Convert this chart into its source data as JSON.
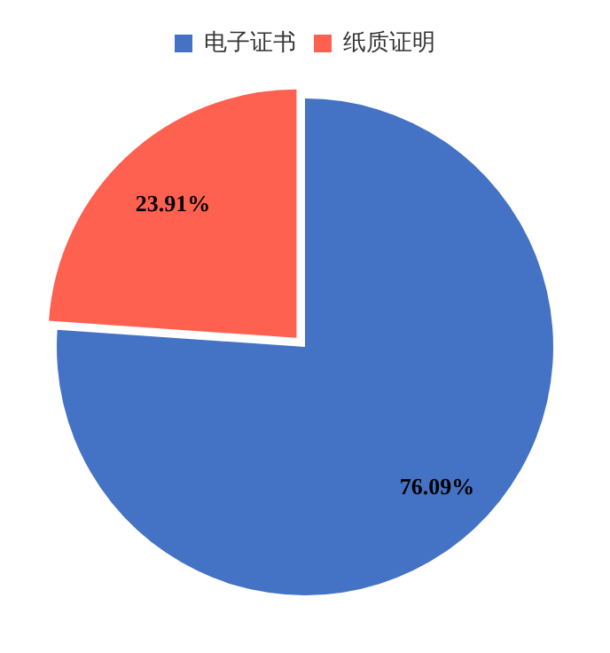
{
  "chart_data": {
    "type": "pie",
    "categories": [
      "电子证书",
      "纸质证明"
    ],
    "values": [
      76.09,
      23.91
    ],
    "colors": [
      "#4472c4",
      "#ff6150"
    ],
    "value_labels": [
      "76.09%",
      "23.91%"
    ],
    "legend": "top"
  }
}
